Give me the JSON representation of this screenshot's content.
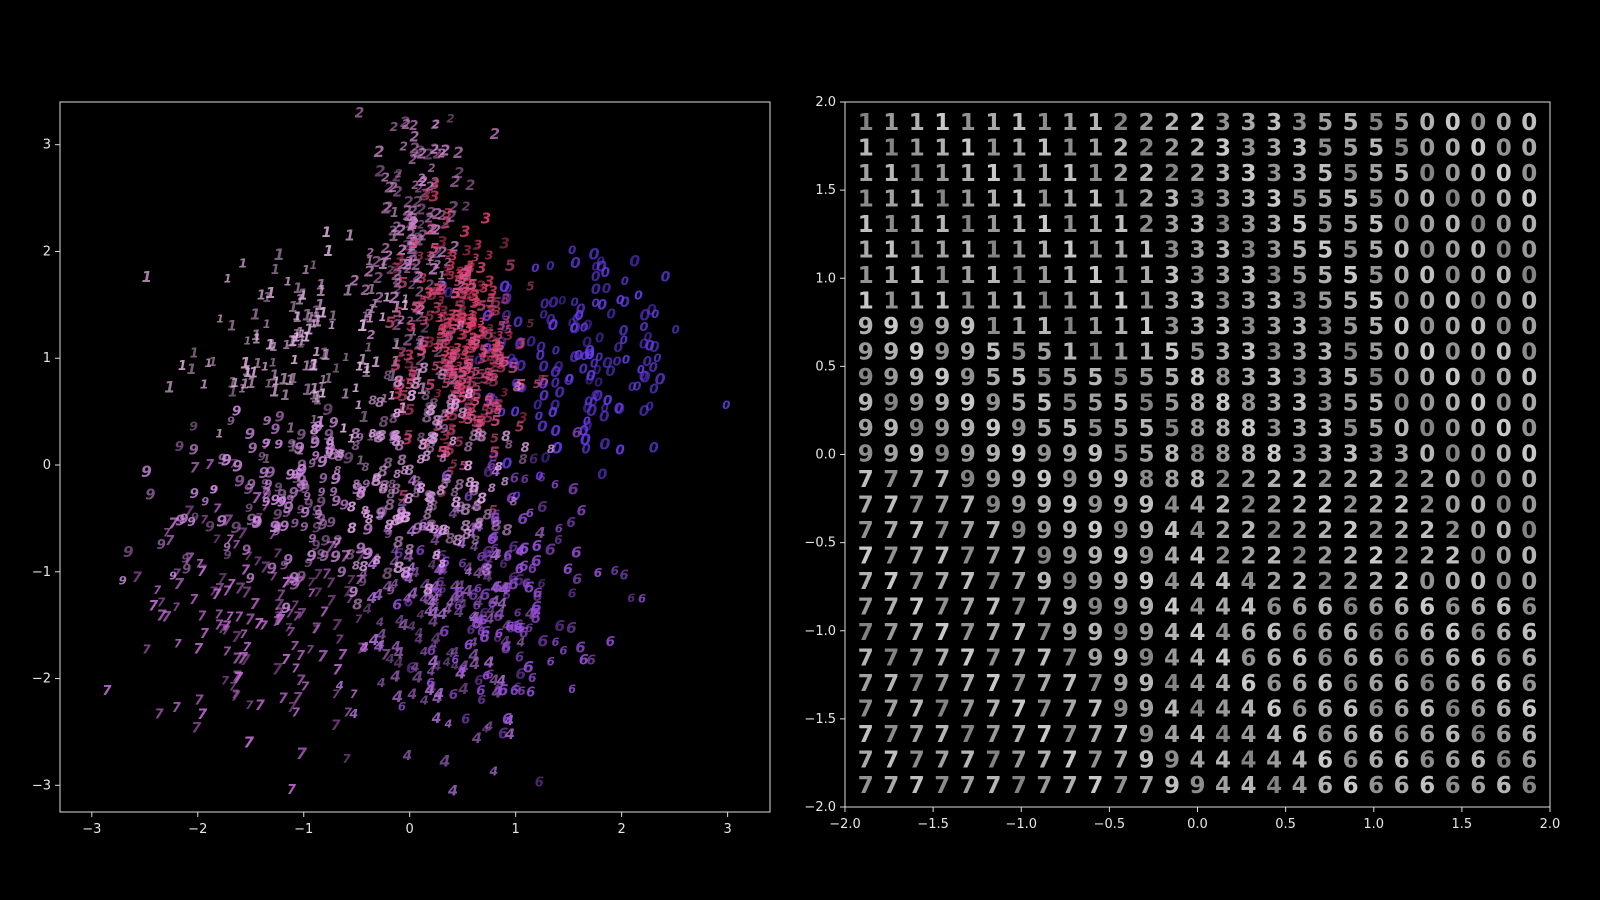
{
  "chart_data": [
    {
      "type": "scatter",
      "marker": "digit-glyph",
      "xlim": [
        -3.3,
        3.4
      ],
      "ylim": [
        -3.25,
        3.4
      ],
      "xticks": [
        -3,
        -2,
        -1,
        0,
        1,
        2,
        3
      ],
      "yticks": [
        -3,
        -2,
        -1,
        0,
        1,
        2,
        3
      ],
      "grid": false,
      "background": "#000000",
      "axis_color": "#dddddd",
      "clusters": [
        {
          "digit": "0",
          "color": "#6a3cf2",
          "center": [
            1.6,
            1.0
          ],
          "spread": [
            0.5,
            0.6
          ]
        },
        {
          "digit": "1",
          "color": "#e8b8e8",
          "center": [
            -0.9,
            1.1
          ],
          "spread": [
            0.55,
            0.45
          ]
        },
        {
          "digit": "2",
          "color": "#c882c8",
          "center": [
            0.05,
            2.3
          ],
          "spread": [
            0.25,
            0.6
          ]
        },
        {
          "digit": "3",
          "color": "#dd3f6a",
          "center": [
            0.5,
            1.3
          ],
          "spread": [
            0.25,
            0.55
          ]
        },
        {
          "digit": "4",
          "color": "#b070d8",
          "center": [
            0.3,
            -1.4
          ],
          "spread": [
            0.45,
            0.6
          ]
        },
        {
          "digit": "5",
          "color": "#d94f86",
          "center": [
            0.55,
            0.9
          ],
          "spread": [
            0.3,
            0.5
          ]
        },
        {
          "digit": "6",
          "color": "#9a50e0",
          "center": [
            0.9,
            -1.2
          ],
          "spread": [
            0.45,
            0.6
          ]
        },
        {
          "digit": "7",
          "color": "#c46cd4",
          "center": [
            -1.4,
            -1.4
          ],
          "spread": [
            0.55,
            0.55
          ]
        },
        {
          "digit": "8",
          "color": "#e4a6ea",
          "center": [
            0.1,
            0.0
          ],
          "spread": [
            0.5,
            0.5
          ]
        },
        {
          "digit": "9",
          "color": "#d08ce2",
          "center": [
            -1.1,
            -0.3
          ],
          "spread": [
            0.6,
            0.45
          ]
        }
      ]
    },
    {
      "type": "heatmap",
      "marker": "decoded-digit-grid",
      "xlim": [
        -2.0,
        2.0
      ],
      "ylim": [
        -2.0,
        2.0
      ],
      "xticks": [
        -2.0,
        -1.5,
        -1.0,
        -0.5,
        0.0,
        0.5,
        1.0,
        1.5,
        2.0
      ],
      "yticks": [
        -2.0,
        -1.5,
        -1.0,
        -0.5,
        0.0,
        0.5,
        1.0,
        1.5,
        2.0
      ],
      "xtick_labels": [
        "−2.0",
        "−1.5",
        "−1.0",
        "−0.5",
        "0.0",
        "0.5",
        "1.0",
        "1.5",
        "2.0"
      ],
      "ytick_labels": [
        "−2.0",
        "−1.5",
        "−1.0",
        "−0.5",
        "0.0",
        "0.5",
        "1.0",
        "1.5",
        "2.0"
      ],
      "n_cols": 27,
      "n_rows": 27,
      "rows": [
        "111111111122223333555500000",
        "111111111122223333555500000",
        "111111111122223333555500000",
        "111111111112333335555000000",
        "111111111112333335555000000",
        "111111111111333335555000000",
        "111111111111333335555000000",
        "111111111111333333555000000",
        "999991111111333333355000000",
        "999995551111553333355000000",
        "999995555555588333355000000",
        "999999555555588833355000000",
        "999999955555588833355000000",
        "999999999955888883333300000",
        "777799999998882222222220000",
        "777779999999442222222220000",
        "777777999999442222222222000",
        "777777799999442222222222000",
        "777777799999444422222200000",
        "777777779999444466666666666",
        "777777779999444666666666666",
        "777777777999444666666666666",
        "777777777799444666666666666",
        "777777777799444466666666666",
        "777777777779444446666666666",
        "777777777779944444666666666",
        "777777777777994444666666666"
      ]
    }
  ]
}
